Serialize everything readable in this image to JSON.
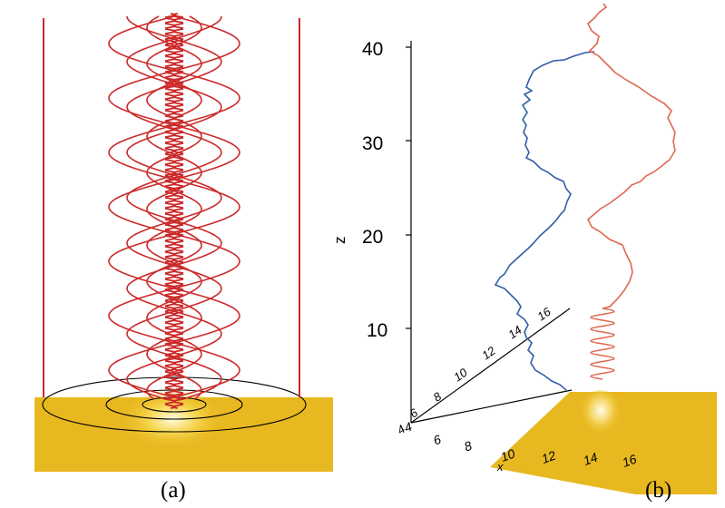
{
  "captions": {
    "a": "(a)",
    "b": "(b)"
  },
  "panel_b": {
    "z_axis_label": "z",
    "z_ticks": [
      "10",
      "20",
      "30",
      "40"
    ],
    "y_ticks": [
      "4",
      "6",
      "8",
      "10",
      "12",
      "14",
      "16"
    ],
    "x_ticks": [
      "4",
      "6",
      "8",
      "10",
      "12",
      "14",
      "16"
    ],
    "x_axis_label": "x"
  },
  "colors": {
    "field_line_red": "#cc2a2a",
    "field_line_blue": "#2f5ea8",
    "field_line_salmon": "#e0674f",
    "surface_gold": "#e8b820",
    "ring_black": "#000000"
  }
}
